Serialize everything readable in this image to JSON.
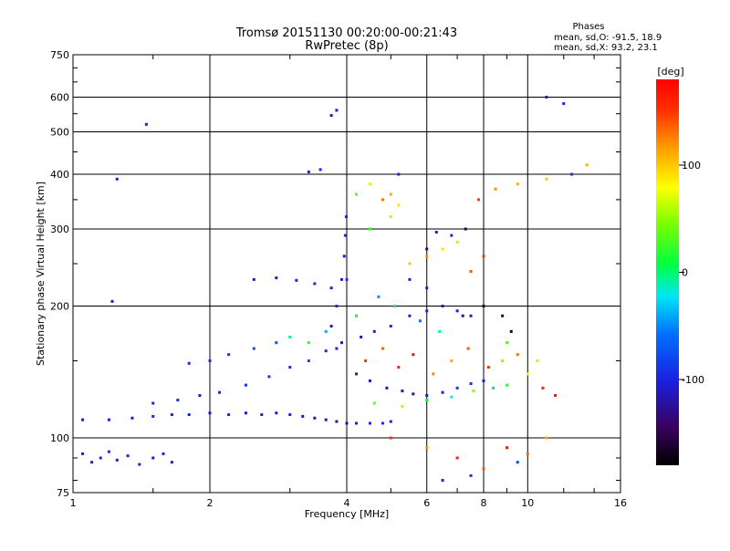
{
  "chart_data": {
    "type": "scatter",
    "title": "Tromsø 20151130 00:20:00-00:21:43",
    "subtitle": "RwPretec (8p)",
    "xlabel": "Frequency [MHz]",
    "ylabel": "Stationary phase Virtual Height [km]",
    "x_scale": "log",
    "y_scale": "log",
    "xlim": [
      1,
      16
    ],
    "ylim": [
      75,
      750
    ],
    "x_ticks": [
      1,
      2,
      4,
      6,
      8,
      10,
      16
    ],
    "y_ticks": [
      75,
      100,
      200,
      300,
      400,
      500,
      600,
      750
    ],
    "grid": true,
    "info": {
      "heading": "Phases",
      "line1": "mean, sd,O: -91.5, 18.9",
      "line2": "mean, sd,X:  93.2, 23.1"
    },
    "colorbar": {
      "label": "[deg]",
      "range": [
        -180,
        180
      ],
      "ticks": [
        100,
        0,
        -100
      ]
    },
    "series": [
      {
        "points": [
          [
            1.05,
            92,
            -105
          ],
          [
            1.1,
            88,
            -110
          ],
          [
            1.15,
            90,
            -100
          ],
          [
            1.2,
            93,
            -95
          ],
          [
            1.25,
            89,
            -108
          ],
          [
            1.32,
            91,
            -102
          ],
          [
            1.4,
            87,
            -96
          ],
          [
            1.5,
            90,
            -110
          ],
          [
            1.58,
            92,
            -100
          ],
          [
            1.65,
            88,
            -104
          ],
          [
            1.05,
            110,
            -110
          ],
          [
            1.2,
            110,
            -105
          ],
          [
            1.35,
            111,
            -112
          ],
          [
            1.5,
            112,
            -100
          ],
          [
            1.65,
            113,
            -108
          ],
          [
            1.8,
            113,
            -102
          ],
          [
            2.0,
            114,
            -110
          ],
          [
            2.2,
            113,
            -98
          ],
          [
            2.4,
            114,
            -106
          ],
          [
            2.6,
            113,
            -104
          ],
          [
            2.8,
            114,
            -112
          ],
          [
            3.0,
            113,
            -100
          ],
          [
            3.2,
            112,
            -108
          ],
          [
            3.4,
            111,
            -115
          ],
          [
            3.6,
            110,
            -120
          ],
          [
            3.8,
            109,
            -118
          ],
          [
            4.0,
            108,
            -125
          ],
          [
            4.2,
            108,
            -110
          ],
          [
            4.5,
            108,
            -100
          ],
          [
            4.8,
            108,
            -95
          ],
          [
            5.0,
            109,
            -105
          ],
          [
            1.5,
            120,
            -100
          ],
          [
            1.7,
            122,
            -95
          ],
          [
            1.9,
            125,
            -102
          ],
          [
            2.1,
            127,
            -98
          ],
          [
            2.4,
            132,
            -90
          ],
          [
            2.7,
            138,
            -85
          ],
          [
            3.0,
            145,
            -92
          ],
          [
            3.3,
            150,
            -80
          ],
          [
            3.6,
            158,
            -95
          ],
          [
            3.9,
            165,
            -110
          ],
          [
            1.8,
            148,
            -100
          ],
          [
            2.0,
            150,
            -95
          ],
          [
            2.2,
            155,
            -90
          ],
          [
            2.5,
            160,
            -80
          ],
          [
            2.8,
            165,
            -75
          ],
          [
            2.5,
            230,
            -105
          ],
          [
            2.8,
            232,
            -110
          ],
          [
            3.1,
            229,
            -102
          ],
          [
            3.4,
            225,
            -98
          ],
          [
            3.7,
            220,
            -106
          ],
          [
            4.0,
            230,
            -90
          ],
          [
            3.8,
            160,
            -100
          ],
          [
            3.7,
            180,
            -110
          ],
          [
            3.8,
            200,
            -95
          ],
          [
            3.9,
            230,
            -105
          ],
          [
            3.95,
            260,
            -110
          ],
          [
            3.97,
            290,
            -100
          ],
          [
            3.99,
            320,
            -105
          ],
          [
            3.3,
            405,
            -100
          ],
          [
            3.5,
            410,
            -95
          ],
          [
            3.7,
            545,
            -120
          ],
          [
            3.8,
            560,
            -110
          ],
          [
            1.25,
            390,
            -110
          ],
          [
            1.45,
            520,
            -100
          ],
          [
            1.22,
            205,
            -115
          ],
          [
            4.2,
            140,
            -120
          ],
          [
            4.5,
            135,
            -110
          ],
          [
            4.9,
            130,
            -125
          ],
          [
            5.3,
            128,
            -115
          ],
          [
            5.6,
            126,
            -120
          ],
          [
            6.0,
            125,
            -110
          ],
          [
            6.5,
            127,
            -100
          ],
          [
            7.0,
            130,
            -90
          ],
          [
            7.5,
            133,
            -95
          ],
          [
            8.0,
            135,
            -105
          ],
          [
            4.3,
            170,
            -110
          ],
          [
            4.6,
            175,
            -100
          ],
          [
            5.0,
            180,
            -95
          ],
          [
            5.5,
            190,
            -105
          ],
          [
            6.0,
            195,
            -100
          ],
          [
            6.5,
            200,
            -110
          ],
          [
            7.0,
            195,
            -105
          ],
          [
            7.5,
            190,
            -115
          ],
          [
            5.5,
            230,
            -100
          ],
          [
            6.0,
            220,
            -105
          ],
          [
            6.3,
            295,
            -110
          ],
          [
            6.8,
            290,
            -100
          ],
          [
            5.2,
            400,
            -95
          ],
          [
            7.2,
            190,
            -120
          ],
          [
            4.5,
            300,
            20
          ],
          [
            5.0,
            320,
            60
          ],
          [
            5.5,
            250,
            100
          ],
          [
            6.0,
            260,
            120
          ],
          [
            6.5,
            270,
            90
          ],
          [
            7.0,
            280,
            60
          ],
          [
            7.5,
            240,
            140
          ],
          [
            8.0,
            260,
            150
          ],
          [
            4.8,
            350,
            130
          ],
          [
            5.0,
            360,
            110
          ],
          [
            5.2,
            340,
            90
          ],
          [
            7.8,
            350,
            150
          ],
          [
            8.5,
            370,
            120
          ],
          [
            9.5,
            380,
            110
          ],
          [
            11.0,
            390,
            100
          ],
          [
            13.5,
            420,
            110
          ],
          [
            4.4,
            150,
            150
          ],
          [
            4.8,
            160,
            135
          ],
          [
            5.2,
            145,
            160
          ],
          [
            5.6,
            155,
            170
          ],
          [
            6.2,
            140,
            125
          ],
          [
            6.8,
            150,
            110
          ],
          [
            7.4,
            160,
            140
          ],
          [
            8.2,
            145,
            155
          ],
          [
            8.8,
            150,
            100
          ],
          [
            9.5,
            155,
            130
          ],
          [
            4.6,
            120,
            40
          ],
          [
            5.3,
            118,
            60
          ],
          [
            6.0,
            122,
            10
          ],
          [
            6.8,
            124,
            -20
          ],
          [
            7.6,
            128,
            50
          ],
          [
            8.4,
            130,
            -30
          ],
          [
            9.0,
            132,
            20
          ],
          [
            10.0,
            140,
            80
          ],
          [
            10.8,
            130,
            160
          ],
          [
            11.5,
            125,
            170
          ],
          [
            3.0,
            170,
            -10
          ],
          [
            3.3,
            165,
            20
          ],
          [
            3.6,
            175,
            -40
          ],
          [
            4.2,
            190,
            10
          ],
          [
            4.7,
            210,
            -50
          ],
          [
            5.1,
            200,
            0
          ],
          [
            5.8,
            185,
            -60
          ],
          [
            6.4,
            175,
            -5
          ],
          [
            9.0,
            165,
            30
          ],
          [
            10.5,
            150,
            60
          ],
          [
            5.0,
            100,
            150
          ],
          [
            6.0,
            95,
            120
          ],
          [
            7.0,
            90,
            160
          ],
          [
            8.0,
            85,
            140
          ],
          [
            9.0,
            95,
            170
          ],
          [
            10.0,
            92,
            130
          ],
          [
            11.0,
            100,
            110
          ],
          [
            6.5,
            80,
            -100
          ],
          [
            7.5,
            82,
            -90
          ],
          [
            9.5,
            88,
            -80
          ],
          [
            4.2,
            360,
            30
          ],
          [
            4.5,
            380,
            70
          ],
          [
            6.0,
            270,
            -140
          ],
          [
            7.3,
            300,
            -150
          ],
          [
            8.0,
            200,
            -160
          ],
          [
            8.8,
            190,
            -150
          ],
          [
            9.2,
            175,
            -170
          ],
          [
            11.0,
            600,
            -110
          ],
          [
            12.0,
            580,
            -100
          ],
          [
            12.5,
            400,
            -90
          ]
        ]
      }
    ]
  }
}
